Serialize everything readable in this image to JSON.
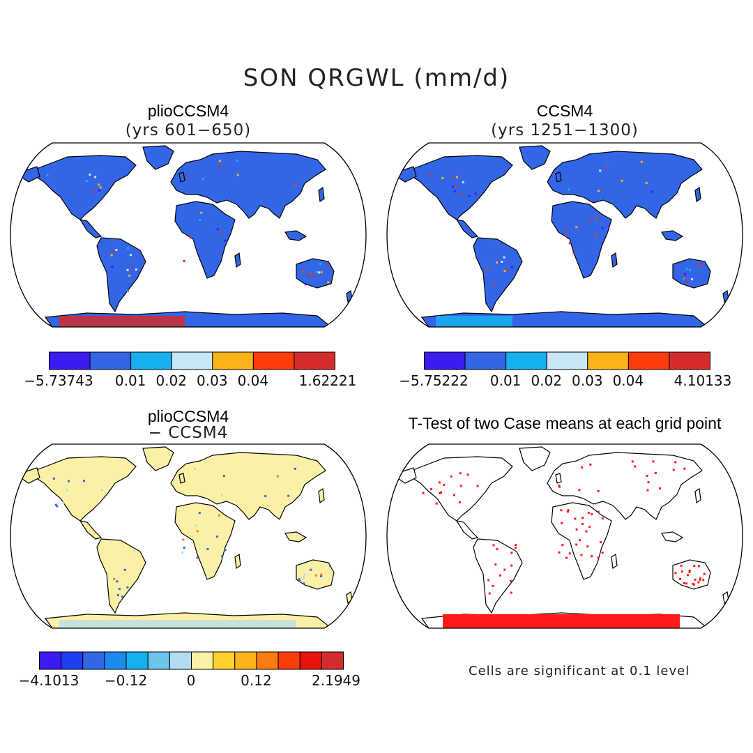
{
  "figure": {
    "title": "SON QRGWL (mm/d)",
    "note": "Cells are significant at 0.1 level"
  },
  "panels": [
    {
      "title": "plioCCSM4",
      "subtitle": "(yrs 601−650)",
      "fill": "#3366e6",
      "colorbar": {
        "colors": [
          "#3a1cf2",
          "#3366e6",
          "#16b0f0",
          "#c8e6f6",
          "#fbb31a",
          "#fc3c0b",
          "#d42c2c"
        ],
        "labels": [
          "−5.73743",
          "0.01",
          "0.02",
          "0.03",
          "0.04",
          "1.62221"
        ]
      }
    },
    {
      "title": "CCSM4",
      "subtitle": "(yrs 1251−1300)",
      "fill": "#3366e6",
      "colorbar": {
        "colors": [
          "#3a1cf2",
          "#3366e6",
          "#16b0f0",
          "#c8e6f6",
          "#fbb31a",
          "#fc3c0b",
          "#d42c2c"
        ],
        "labels": [
          "−5.75222",
          "0.01",
          "0.02",
          "0.03",
          "0.04",
          "4.10133"
        ]
      }
    },
    {
      "title": "plioCCSM4",
      "subtitle": "− CCSM4",
      "fill": "#fbf1a6",
      "colorbar": {
        "colors": [
          "#3a1cf2",
          "#1f3cf0",
          "#3366e6",
          "#1a8cf0",
          "#16b0f0",
          "#6cc4ec",
          "#b2dcf2",
          "#fbf1a6",
          "#fdd02c",
          "#fbb31a",
          "#fb7b12",
          "#fc3c0b",
          "#e8140c",
          "#d42c2c"
        ],
        "labels": [
          "−4.1013",
          "−0.12",
          "0",
          "0.12",
          "2.1949"
        ]
      }
    },
    {
      "title": "T-Test of two Case means at each grid point",
      "subtitle": "",
      "fill": "#ffffff",
      "dot_color": "#ff1a1a"
    }
  ]
}
